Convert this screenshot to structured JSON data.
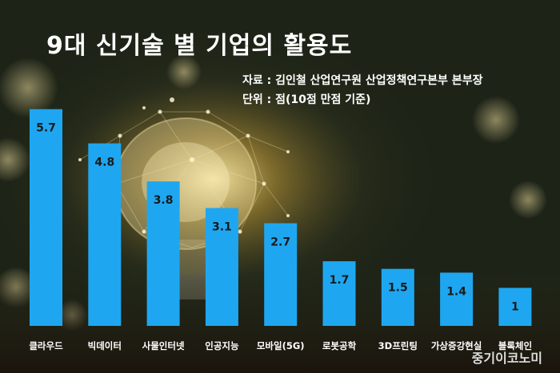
{
  "title": "9대 신기술 별 기업의 활용도",
  "source": "자료 : 김인철 산업연구원 산업정책연구본부 본부장",
  "unit": "단위 : 점(10점 만점 기준)",
  "watermark": "중기이코노미",
  "colors": {
    "bar": "#1ea7f0",
    "label_text": "#1a1a1a",
    "category_text": "#ffffff"
  },
  "chart_data": {
    "type": "bar",
    "categories": [
      "클라우드",
      "빅데이터",
      "사물인터넷",
      "인공지능",
      "모바일(5G)",
      "로봇공학",
      "3D프린팅",
      "가상증강현실",
      "블록체인"
    ],
    "values": [
      5.7,
      4.8,
      3.8,
      3.1,
      2.7,
      1.7,
      1.5,
      1.4,
      1
    ],
    "data_labels": [
      "5.7",
      "4.8",
      "3.8",
      "3.1",
      "2.7",
      "1.7",
      "1.5",
      "1.4",
      "1"
    ],
    "title": "9대 신기술 별 기업의 활용도",
    "xlabel": "",
    "ylabel": "",
    "ylim": [
      0,
      6
    ],
    "grid": false
  }
}
